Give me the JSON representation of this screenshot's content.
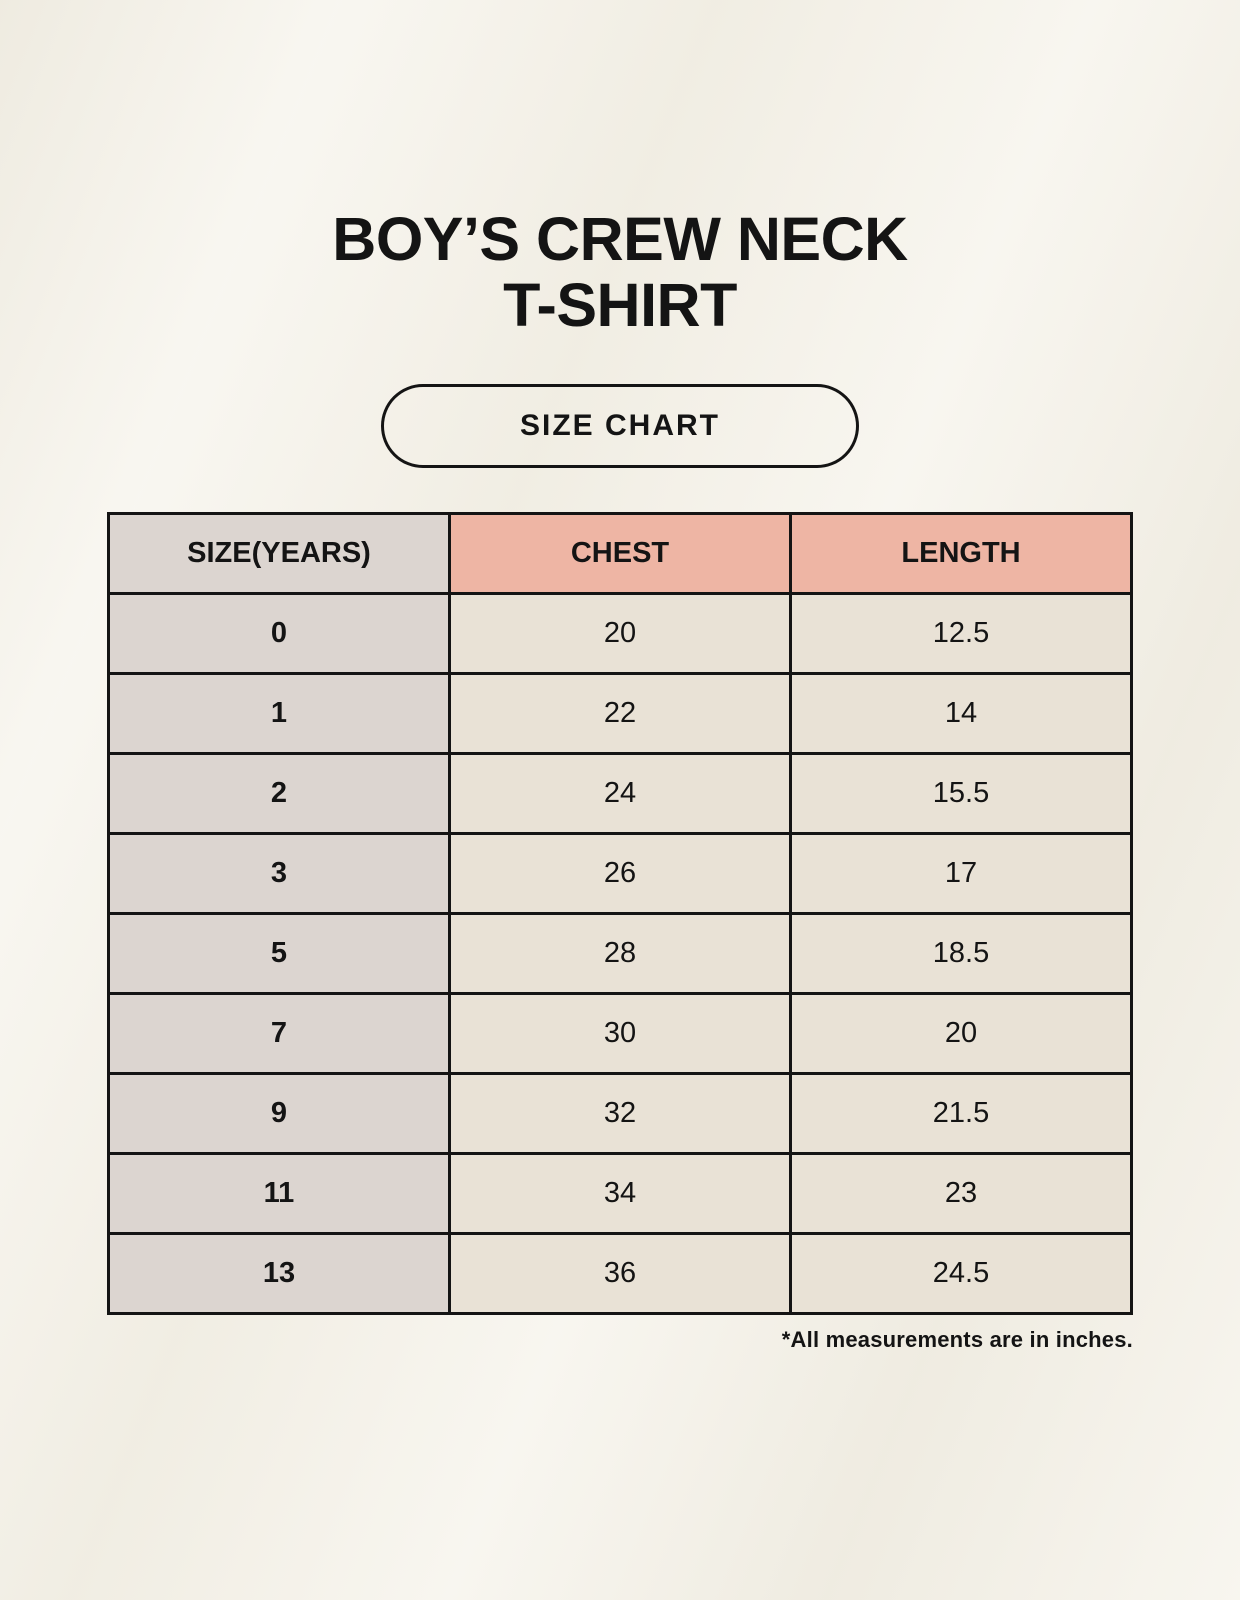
{
  "header": {
    "title_line1": "BOY’S CREW NECK",
    "title_line2": "T-SHIRT",
    "badge_label": "SIZE CHART"
  },
  "footer": {
    "note": "*All measurements are in inches."
  },
  "colors": {
    "background": "#f5f2e9",
    "header_pink": "#eeb5a4",
    "size_col_gray": "#dcd5d0",
    "cell_cream": "#e9e2d6",
    "border": "#141414",
    "text": "#141414"
  },
  "chart_data": {
    "type": "table",
    "title": "BOY’S CREW NECK T-SHIRT — SIZE CHART",
    "units": "inches",
    "columns": [
      "SIZE(YEARS)",
      "CHEST",
      "LENGTH"
    ],
    "rows": [
      [
        "0",
        "20",
        "12.5"
      ],
      [
        "1",
        "22",
        "14"
      ],
      [
        "2",
        "24",
        "15.5"
      ],
      [
        "3",
        "26",
        "17"
      ],
      [
        "5",
        "28",
        "18.5"
      ],
      [
        "7",
        "30",
        "20"
      ],
      [
        "9",
        "32",
        "21.5"
      ],
      [
        "11",
        "34",
        "23"
      ],
      [
        "13",
        "36",
        "24.5"
      ]
    ]
  }
}
